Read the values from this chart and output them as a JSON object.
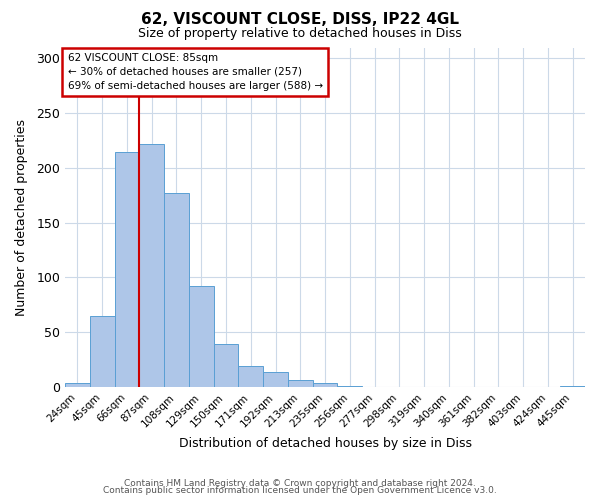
{
  "title": "62, VISCOUNT CLOSE, DISS, IP22 4GL",
  "subtitle": "Size of property relative to detached houses in Diss",
  "xlabel": "Distribution of detached houses by size in Diss",
  "ylabel": "Number of detached properties",
  "bar_color": "#aec6e8",
  "bar_edge_color": "#5a9fd4",
  "bin_labels": [
    "24sqm",
    "45sqm",
    "66sqm",
    "87sqm",
    "108sqm",
    "129sqm",
    "150sqm",
    "171sqm",
    "192sqm",
    "213sqm",
    "235sqm",
    "256sqm",
    "277sqm",
    "298sqm",
    "319sqm",
    "340sqm",
    "361sqm",
    "382sqm",
    "403sqm",
    "424sqm",
    "445sqm"
  ],
  "bar_heights": [
    4,
    65,
    215,
    222,
    177,
    92,
    39,
    19,
    14,
    6,
    4,
    1,
    0,
    0,
    0,
    0,
    0,
    0,
    0,
    0,
    1
  ],
  "ylim": [
    0,
    310
  ],
  "yticks": [
    0,
    50,
    100,
    150,
    200,
    250,
    300
  ],
  "vline_pos": 2.5,
  "vline_color": "#cc0000",
  "annotation_title": "62 VISCOUNT CLOSE: 85sqm",
  "annotation_line1": "← 30% of detached houses are smaller (257)",
  "annotation_line2": "69% of semi-detached houses are larger (588) →",
  "annotation_box_color": "#ffffff",
  "annotation_box_edge": "#cc0000",
  "footer1": "Contains HM Land Registry data © Crown copyright and database right 2024.",
  "footer2": "Contains public sector information licensed under the Open Government Licence v3.0.",
  "background_color": "#ffffff",
  "grid_color": "#ccd9e8"
}
